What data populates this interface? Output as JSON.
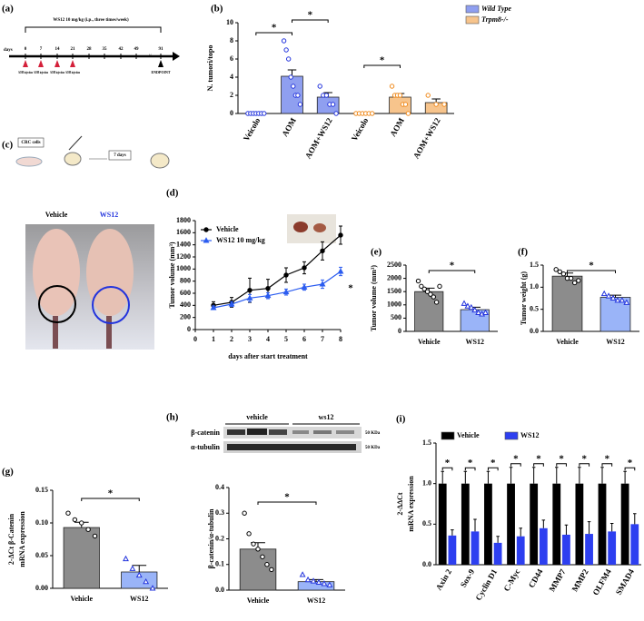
{
  "panel_labels": [
    "(a)",
    "(b)",
    "(c)",
    "(d)",
    "(e)",
    "(f)",
    "(g)",
    "(h)",
    "(i)"
  ],
  "timeline": {
    "treatment": "WS12 10 mg/kg (i.p., three times/week)",
    "axis_label": "days",
    "days": [
      "0",
      "7",
      "14",
      "21",
      "28",
      "35",
      "42",
      "49",
      "91"
    ],
    "injections": [
      "AOM injection",
      "AOM injection",
      "AOM injection",
      "AOM injection"
    ],
    "endpoint": "ENDPOINT"
  },
  "schematic": {
    "cells": "CRC cells",
    "interval": "7 days"
  },
  "photo_labels": [
    "Vehicle",
    "WS12"
  ],
  "western_blot": {
    "proteins": [
      "β-catenin",
      "α-tubulin"
    ],
    "groups": [
      "vehicle",
      "ws12"
    ],
    "sizes": [
      "50 KDa",
      "50 KDa"
    ]
  },
  "chart_data": [
    {
      "type": "bar",
      "ylabel": "N. tumori/topo",
      "categories": [
        "Veicolo",
        "AOM",
        "AOM+WS12",
        "Veicolo",
        "AOM",
        "AOM+WS12"
      ],
      "series": [
        {
          "name": "Wild Type",
          "color": "#8f9ff0",
          "point_color": "#2233dd",
          "marker": "circle",
          "values": [
            0,
            4.1,
            1.8,
            null,
            null,
            null
          ],
          "errors": [
            0,
            0.7,
            0.5,
            null,
            null,
            null
          ],
          "points": [
            [
              0,
              0,
              0,
              0,
              0,
              0,
              0
            ],
            [
              8,
              7,
              6,
              4,
              3,
              2,
              2,
              1
            ],
            [
              3,
              2,
              2,
              1,
              1,
              0
            ],
            null,
            null,
            null
          ]
        },
        {
          "name": "Trpm8-/-",
          "color": "#f7c48c",
          "point_color": "#f08a1c",
          "marker": "circle",
          "values": [
            null,
            null,
            null,
            0,
            1.8,
            1.2
          ],
          "errors": [
            null,
            null,
            null,
            0,
            0.4,
            0.4
          ],
          "points": [
            null,
            null,
            null,
            [
              0,
              0,
              0,
              0,
              0,
              0
            ],
            [
              3,
              2,
              2,
              2,
              1,
              1,
              0
            ],
            [
              2,
              1,
              1
            ]
          ]
        }
      ],
      "ylim": [
        0,
        10
      ],
      "yticks": [
        0,
        2,
        4,
        6,
        8,
        10
      ],
      "legend": "upper right",
      "significance": [
        "*",
        "*",
        "*"
      ]
    },
    {
      "type": "line",
      "xlabel": "days after start treatment",
      "ylabel": "Tumor volume (mm³)",
      "x": [
        1,
        2,
        3,
        4,
        5,
        6,
        7,
        8
      ],
      "series": [
        {
          "name": "Vehicle",
          "color": "#000000",
          "marker": "circle",
          "values": [
            400,
            450,
            650,
            680,
            900,
            1020,
            1300,
            1560
          ],
          "errors": [
            60,
            80,
            200,
            150,
            120,
            100,
            150,
            150
          ]
        },
        {
          "name": "WS12 10 mg/kg",
          "color": "#2b5cf0",
          "marker": "triangle",
          "values": [
            360,
            420,
            520,
            560,
            620,
            700,
            750,
            960
          ],
          "errors": [
            30,
            40,
            60,
            50,
            50,
            50,
            70,
            70
          ]
        }
      ],
      "xlim": [
        0,
        8
      ],
      "xticks": [
        0,
        1,
        2,
        3,
        4,
        5,
        6,
        7,
        8
      ],
      "ylim": [
        0,
        1800
      ],
      "yticks": [
        0,
        200,
        400,
        600,
        800,
        1000,
        1200,
        1400,
        1600,
        1800
      ],
      "legend": "upper left",
      "significance": [
        "*"
      ]
    },
    {
      "type": "bar",
      "ylabel": "Tumor volume (mm³)",
      "categories": [
        "Vehicle",
        "WS12"
      ],
      "values": [
        1500,
        820
      ],
      "errors": [
        130,
        90
      ],
      "colors": [
        "#8c8c8c",
        "#9ab4f8"
      ],
      "markers": [
        "circle",
        "triangle"
      ],
      "point_colors": [
        "#000000",
        "#2233dd"
      ],
      "points": [
        [
          1900,
          1700,
          1600,
          1500,
          1400,
          1300,
          1100,
          1700
        ],
        [
          1050,
          950,
          900,
          800,
          700,
          650,
          700
        ]
      ],
      "ylim": [
        0,
        2500
      ],
      "yticks": [
        0,
        500,
        1000,
        1500,
        2000,
        2500
      ],
      "significance": [
        "*"
      ]
    },
    {
      "type": "bar",
      "ylabel": "Tumor weight (g)",
      "categories": [
        "Vehicle",
        "WS12"
      ],
      "values": [
        1.25,
        0.77
      ],
      "errors": [
        0.07,
        0.05
      ],
      "colors": [
        "#8c8c8c",
        "#9ab4f8"
      ],
      "markers": [
        "circle",
        "triangle"
      ],
      "point_colors": [
        "#000000",
        "#2233dd"
      ],
      "points": [
        [
          1.4,
          1.35,
          1.3,
          1.2,
          1.2,
          1.1,
          1.15
        ],
        [
          0.85,
          0.8,
          0.75,
          0.7,
          0.7,
          0.65
        ]
      ],
      "ylim": [
        0,
        1.5
      ],
      "yticks": [
        {
          "value": 0,
          "label": "0.0"
        },
        {
          "value": 0.5,
          "label": "0.5"
        },
        {
          "value": 1,
          "label": "1.0"
        },
        {
          "value": 1.5,
          "label": "1.5"
        }
      ],
      "significance": [
        "*"
      ]
    },
    {
      "type": "bar",
      "ylabel": [
        "2-ΔCt β-Catenin",
        "mRNA expression"
      ],
      "categories": [
        "Vehicle",
        "WS12"
      ],
      "values": [
        0.093,
        0.025
      ],
      "errors": [
        0.008,
        0.01
      ],
      "colors": [
        "#8c8c8c",
        "#9ab4f8"
      ],
      "markers": [
        "circle",
        "triangle"
      ],
      "point_colors": [
        "#000000",
        "#2233dd"
      ],
      "points": [
        [
          0.115,
          0.105,
          0.1,
          0.09,
          0.08
        ],
        [
          0.045,
          0.03,
          0.02,
          0.01,
          0
        ]
      ],
      "ylim": [
        0,
        0.15
      ],
      "yticks": [
        {
          "value": 0,
          "label": "0.00"
        },
        {
          "value": 0.05,
          "label": "0.05"
        },
        {
          "value": 0.1,
          "label": "0.10"
        },
        {
          "value": 0.15,
          "label": "0.15"
        }
      ],
      "significance": [
        "*"
      ]
    },
    {
      "type": "bar",
      "ylabel": "β-catenin/α-tubulin",
      "categories": [
        "Vehicle",
        "WS12"
      ],
      "values": [
        0.16,
        0.033
      ],
      "errors": [
        0.025,
        0.008
      ],
      "colors": [
        "#8c8c8c",
        "#9ab4f8"
      ],
      "markers": [
        "circle",
        "triangle"
      ],
      "point_colors": [
        "#000000",
        "#2233dd"
      ],
      "points": [
        [
          0.3,
          0.22,
          0.18,
          0.16,
          0.13,
          0.1,
          0.08
        ],
        [
          0.06,
          0.04,
          0.035,
          0.03,
          0.025,
          0.02
        ]
      ],
      "ylim": [
        0,
        0.4
      ],
      "yticks": [
        {
          "value": 0,
          "label": "0.0"
        },
        {
          "value": 0.1,
          "label": "0.1"
        },
        {
          "value": 0.2,
          "label": "0.2"
        },
        {
          "value": 0.3,
          "label": "0.3"
        },
        {
          "value": 0.4,
          "label": "0.4"
        }
      ],
      "significance": [
        "*"
      ]
    },
    {
      "type": "bar",
      "ylabel": [
        "2-ΔΔCt",
        "mRNA expression"
      ],
      "categories": [
        "Axin 2",
        "Sox-9",
        "Cyclin D1",
        "C-Myc",
        "CD44",
        "MMP7",
        "MMP2",
        "OLFM4",
        "SMAD4"
      ],
      "series": [
        {
          "name": "Vehicle",
          "color": "#000000",
          "values": [
            1,
            1,
            1,
            1,
            1,
            1,
            1,
            1,
            1
          ],
          "errors": [
            0.15,
            0.15,
            0.15,
            0.2,
            0.2,
            0.2,
            0.2,
            0.2,
            0.15
          ]
        },
        {
          "name": "WS12",
          "color": "#2d3ff0",
          "values": [
            0.36,
            0.41,
            0.27,
            0.35,
            0.45,
            0.37,
            0.38,
            0.41,
            0.5
          ],
          "errors": [
            0.07,
            0.15,
            0.08,
            0.1,
            0.1,
            0.12,
            0.15,
            0.1,
            0.13
          ]
        }
      ],
      "ylim": [
        0,
        1.5
      ],
      "yticks": [
        {
          "value": 0,
          "label": "0.0"
        },
        {
          "value": 0.5,
          "label": "0.5"
        },
        {
          "value": 1,
          "label": "1.0"
        },
        {
          "value": 1.5,
          "label": "1.5"
        }
      ],
      "legend": "upper left",
      "significance": [
        "*",
        "*",
        "*",
        "*",
        "*",
        "*",
        "*",
        "*",
        "*"
      ]
    }
  ]
}
